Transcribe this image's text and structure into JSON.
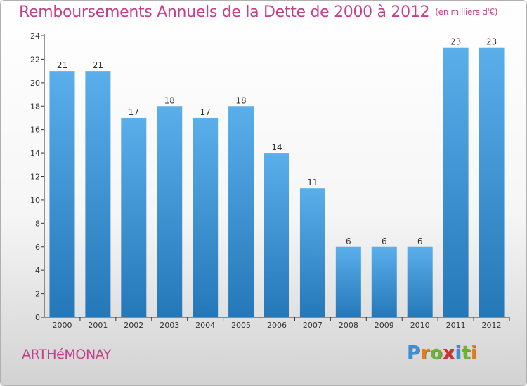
{
  "header": {
    "title": "Remboursements Annuels de la Dette de 2000 à 2012",
    "unit": "(en milliers d'€)"
  },
  "footer": {
    "town": "ARTHéMONAY",
    "brand": "Proxiti",
    "brand_letters": [
      "P",
      "r",
      "o",
      "x",
      "i",
      "t",
      "i"
    ],
    "brand_colors": [
      "#3a8fd9",
      "#e87d14",
      "#6bb52c",
      "#d42e2e",
      "#3a8fd9",
      "#6bb52c",
      "#e87d14"
    ]
  },
  "chart_data": {
    "type": "bar",
    "categories": [
      "2000",
      "2001",
      "2002",
      "2003",
      "2004",
      "2005",
      "2006",
      "2007",
      "2008",
      "2009",
      "2010",
      "2011",
      "2012"
    ],
    "values": [
      21,
      21,
      17,
      18,
      17,
      18,
      14,
      11,
      6,
      6,
      6,
      23,
      23
    ],
    "data_labels": [
      "21",
      "21",
      "17",
      "18",
      "17",
      "18",
      "14",
      "11",
      "6",
      "6",
      "6",
      "23",
      "23"
    ],
    "ylim": [
      0,
      24
    ],
    "yticks": [
      0,
      2,
      4,
      6,
      8,
      10,
      12,
      14,
      16,
      18,
      20,
      22,
      24
    ],
    "ytick_labels": [
      "0",
      "2",
      "4",
      "6",
      "8",
      "10",
      "12",
      "14",
      "16",
      "18",
      "20",
      "22",
      "24"
    ],
    "grid": false,
    "colors": {
      "bar_top": "#5aaeea",
      "bar_bottom": "#2478b8",
      "axis": "#333333",
      "text": "#333333"
    }
  }
}
